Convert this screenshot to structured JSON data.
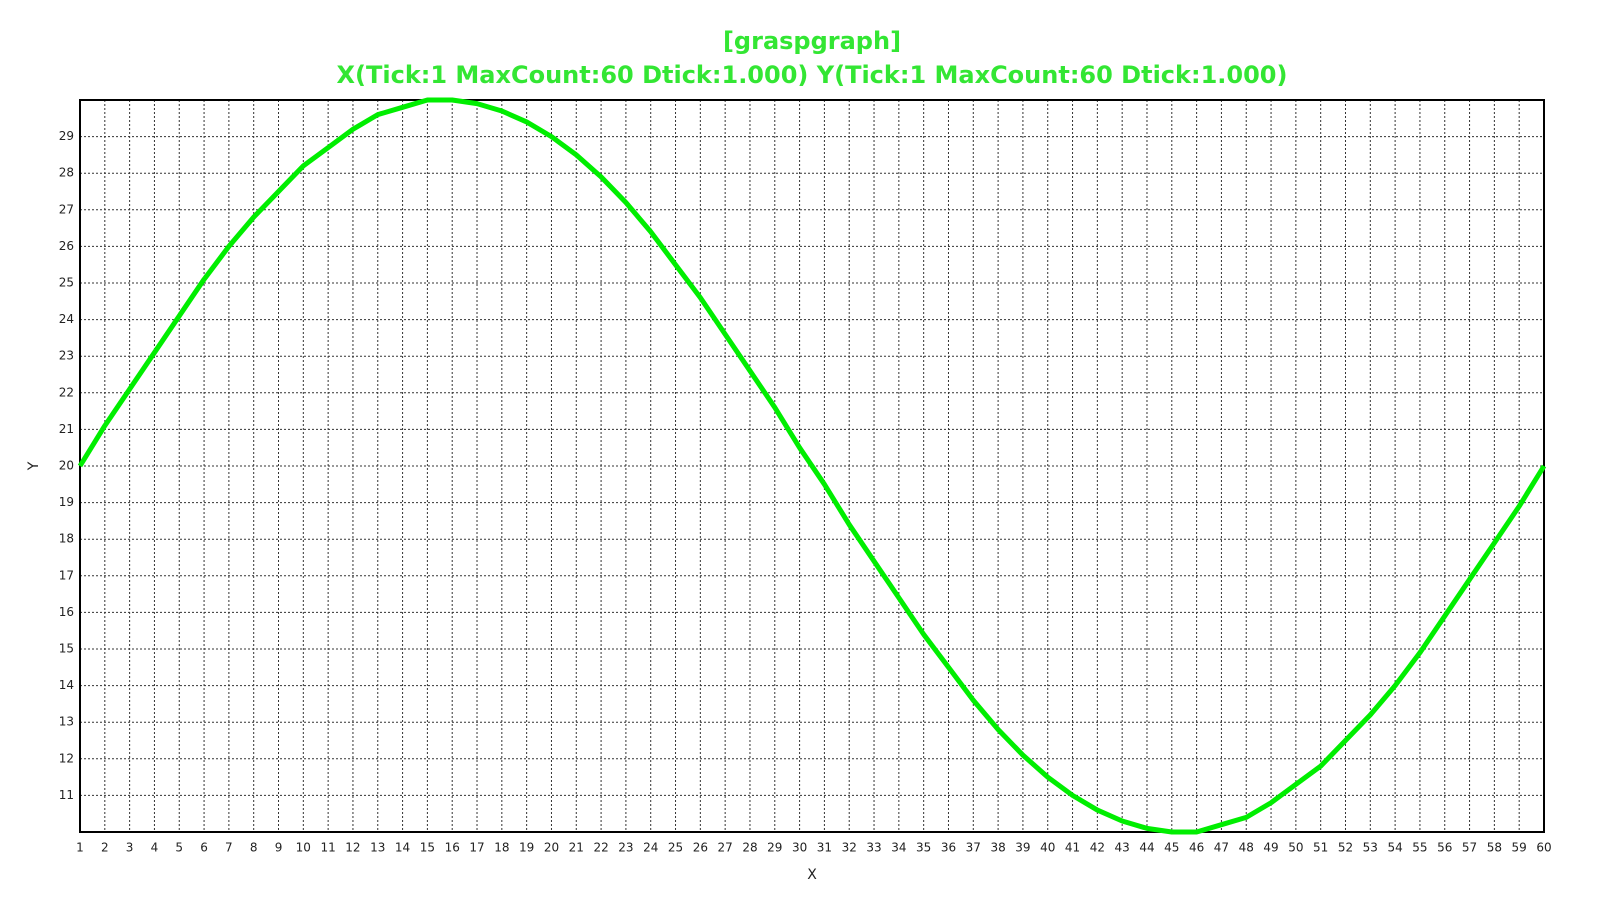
{
  "chart_data": {
    "type": "line",
    "title": "[graspgraph]",
    "subtitle": "X(Tick:1 MaxCount:60 Dtick:1.000) Y(Tick:1 MaxCount:60 Dtick:1.000)",
    "x_label": "X",
    "y_label": "Y",
    "x": [
      1,
      2,
      3,
      4,
      5,
      6,
      7,
      8,
      9,
      10,
      11,
      12,
      13,
      14,
      15,
      16,
      17,
      18,
      19,
      20,
      21,
      22,
      23,
      24,
      25,
      26,
      27,
      28,
      29,
      30,
      31,
      32,
      33,
      34,
      35,
      36,
      37,
      38,
      39,
      40,
      41,
      42,
      43,
      44,
      45,
      46,
      47,
      48,
      49,
      50,
      51,
      52,
      53,
      54,
      55,
      56,
      57,
      58,
      59,
      60
    ],
    "series": [
      {
        "color": "#00ee00",
        "values": [
          20,
          21.1,
          22.1,
          23.1,
          24.1,
          25.1,
          26,
          26.8,
          27.5,
          28.2,
          28.7,
          29.2,
          29.6,
          29.8,
          30,
          30,
          29.9,
          29.7,
          29.4,
          29,
          28.5,
          27.9,
          27.2,
          26.4,
          25.5,
          24.6,
          23.6,
          22.6,
          21.6,
          20.5,
          19.5,
          18.4,
          17.4,
          16.4,
          15.4,
          14.5,
          13.6,
          12.8,
          12.1,
          11.5,
          11,
          10.6,
          10.3,
          10.1,
          10,
          10,
          10.2,
          10.4,
          10.8,
          11.3,
          11.8,
          12.5,
          13.2,
          14,
          14.9,
          15.9,
          16.9,
          17.9,
          18.9,
          20
        ]
      }
    ],
    "xlim": [
      1,
      60
    ],
    "ylim": [
      10,
      30
    ],
    "xticks": [
      1,
      2,
      3,
      4,
      5,
      6,
      7,
      8,
      9,
      10,
      11,
      12,
      13,
      14,
      15,
      16,
      17,
      18,
      19,
      20,
      21,
      22,
      23,
      24,
      25,
      26,
      27,
      28,
      29,
      30,
      31,
      32,
      33,
      34,
      35,
      36,
      37,
      38,
      39,
      40,
      41,
      42,
      43,
      44,
      45,
      46,
      47,
      48,
      49,
      50,
      51,
      52,
      53,
      54,
      55,
      56,
      57,
      58,
      59,
      60
    ],
    "yticks": [
      11,
      12,
      13,
      14,
      15,
      16,
      17,
      18,
      19,
      20,
      21,
      22,
      23,
      24,
      25,
      26,
      27,
      28,
      29
    ],
    "grid": true
  }
}
